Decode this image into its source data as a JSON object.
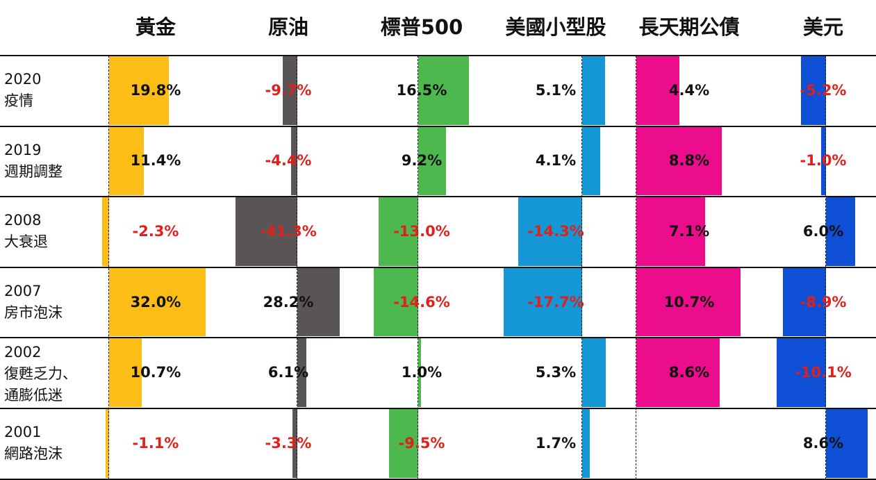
{
  "chart_data": {
    "type": "bar",
    "columns": [
      "黃金",
      "原油",
      "標普500",
      "美國小型股",
      "長天期公債",
      "美元"
    ],
    "column_colors": [
      "#fbbd16",
      "#595556",
      "#4db84e",
      "#1597d6",
      "#ec0d8c",
      "#0e4fd6"
    ],
    "negative_color": "#e0201b",
    "rows": [
      {
        "year": "2020",
        "event": "疫情",
        "values": [
          19.8,
          -9.7,
          16.5,
          5.1,
          4.4,
          -5.2
        ]
      },
      {
        "year": "2019",
        "event": "週期調整",
        "values": [
          11.4,
          -4.4,
          9.2,
          4.1,
          8.8,
          -1.0
        ]
      },
      {
        "year": "2008",
        "event": "大衰退",
        "values": [
          -2.3,
          -41.3,
          -13.0,
          -14.3,
          7.1,
          6.0
        ]
      },
      {
        "year": "2007",
        "event": "房市泡沫",
        "values": [
          32.0,
          28.2,
          -14.6,
          -17.7,
          10.7,
          -8.9
        ]
      },
      {
        "year": "2002",
        "event": "復甦乏力、\n通膨低迷",
        "values": [
          10.7,
          6.1,
          1.0,
          5.3,
          8.6,
          -10.1
        ]
      },
      {
        "year": "2001",
        "event": "網路泡沫",
        "values": [
          -1.1,
          -3.3,
          -9.5,
          1.7,
          null,
          8.6
        ]
      }
    ],
    "labels": [
      [
        "19.8%",
        "-9.7%",
        "16.5%",
        "5.1%",
        "4.4%",
        "-5.2%"
      ],
      [
        "11.4%",
        "-4.4%",
        "9.2%",
        "4.1%",
        "8.8%",
        "-1.0%"
      ],
      [
        "-2.3%",
        "-41.3%",
        "-13.0%",
        "-14.3%",
        "7.1%",
        "6.0%"
      ],
      [
        "32.0%",
        "28.2%",
        "-14.6%",
        "-17.7%",
        "10.7%",
        "-8.9%"
      ],
      [
        "10.7%",
        "6.1%",
        "1.0%",
        "5.3%",
        "8.6%",
        "-10.1%"
      ],
      [
        "-1.1%",
        "-3.3%",
        "-9.5%",
        "1.7%",
        "",
        "8.6%"
      ]
    ]
  }
}
